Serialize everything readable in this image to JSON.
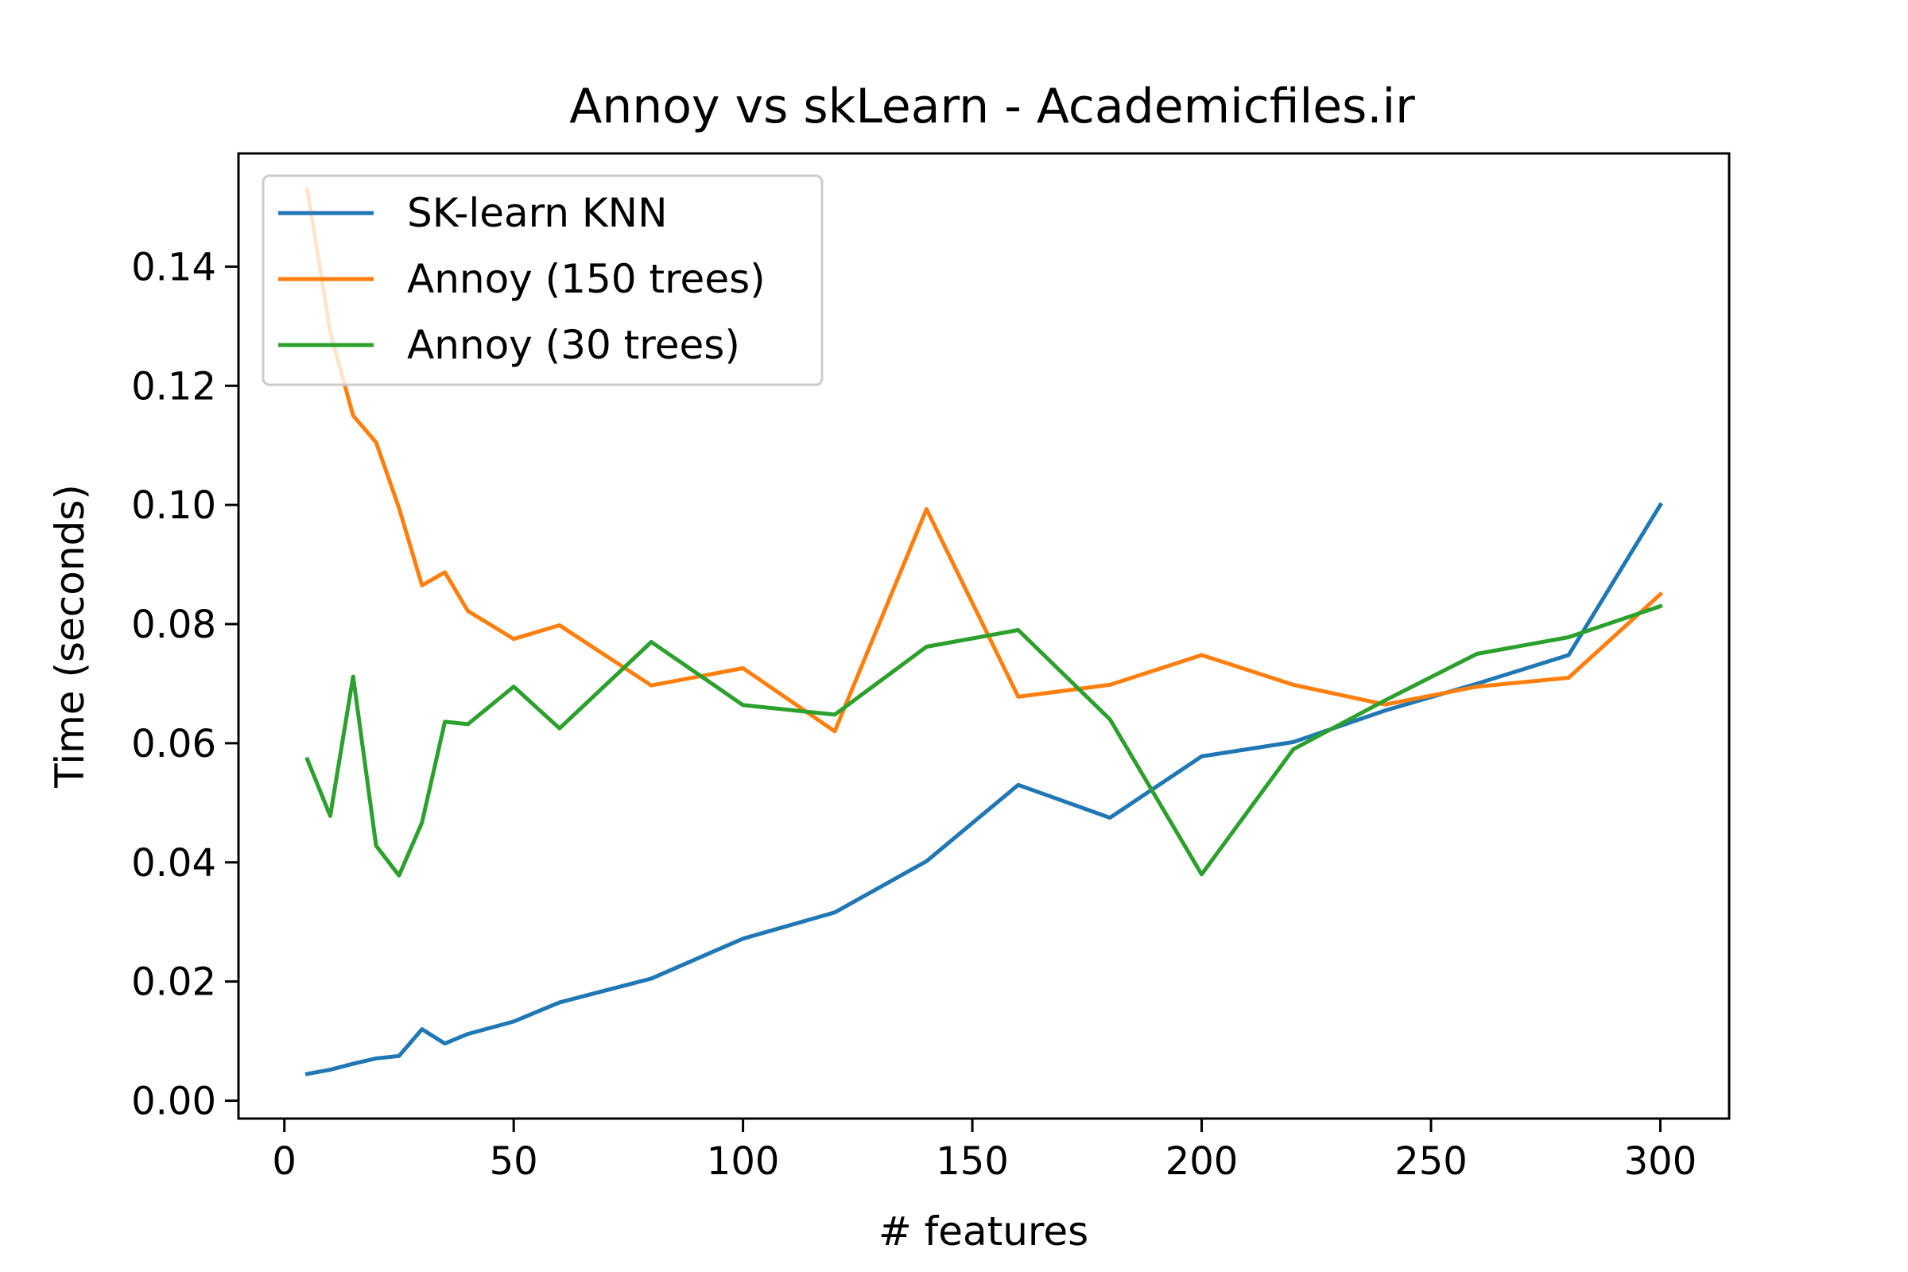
{
  "chart_data": {
    "type": "line",
    "title": "Annoy vs skLearn - Academicfiles.ir",
    "xlabel": "# features",
    "ylabel": "Time (seconds)",
    "xlim": [
      -10,
      315
    ],
    "ylim": [
      -0.003,
      0.159
    ],
    "xticks": [
      0,
      50,
      100,
      150,
      200,
      250,
      300
    ],
    "xtick_labels": [
      "0",
      "50",
      "100",
      "150",
      "200",
      "250",
      "300"
    ],
    "yticks": [
      0.0,
      0.02,
      0.04,
      0.06,
      0.08,
      0.1,
      0.12,
      0.14
    ],
    "ytick_labels": [
      "0.00",
      "0.02",
      "0.04",
      "0.06",
      "0.08",
      "0.10",
      "0.12",
      "0.14"
    ],
    "grid": false,
    "legend_position": "upper-left",
    "series": [
      {
        "name": "SK-learn KNN",
        "color": "#1f77b4",
        "x": [
          5,
          10,
          15,
          20,
          25,
          30,
          35,
          40,
          50,
          60,
          80,
          100,
          120,
          140,
          160,
          180,
          200,
          220,
          240,
          260,
          280,
          300
        ],
        "y": [
          0.0045,
          0.0052,
          0.0062,
          0.0071,
          0.0075,
          0.012,
          0.0096,
          0.0112,
          0.0133,
          0.0165,
          0.0205,
          0.0272,
          0.0316,
          0.0402,
          0.053,
          0.0475,
          0.0578,
          0.0602,
          0.0655,
          0.07,
          0.0748,
          0.1
        ]
      },
      {
        "name": "Annoy (150 trees)",
        "color": "#ff7f0e",
        "x": [
          5,
          10,
          15,
          20,
          25,
          30,
          35,
          40,
          50,
          60,
          80,
          100,
          120,
          140,
          160,
          180,
          200,
          220,
          240,
          260,
          280,
          300
        ],
        "y": [
          0.153,
          0.129,
          0.115,
          0.1105,
          0.0995,
          0.0865,
          0.0887,
          0.0822,
          0.0775,
          0.0798,
          0.0697,
          0.0726,
          0.062,
          0.0993,
          0.0678,
          0.0698,
          0.0748,
          0.0698,
          0.0665,
          0.0695,
          0.071,
          0.085
        ]
      },
      {
        "name": "Annoy (30 trees)",
        "color": "#2ca02c",
        "x": [
          5,
          10,
          15,
          20,
          25,
          30,
          35,
          40,
          50,
          60,
          80,
          100,
          120,
          140,
          160,
          180,
          200,
          220,
          240,
          260,
          280,
          300
        ],
        "y": [
          0.0573,
          0.0478,
          0.0712,
          0.0428,
          0.0378,
          0.0467,
          0.0636,
          0.0632,
          0.0695,
          0.0625,
          0.077,
          0.0664,
          0.0648,
          0.0762,
          0.079,
          0.064,
          0.038,
          0.059,
          0.0672,
          0.075,
          0.0778,
          0.083
        ]
      }
    ]
  }
}
